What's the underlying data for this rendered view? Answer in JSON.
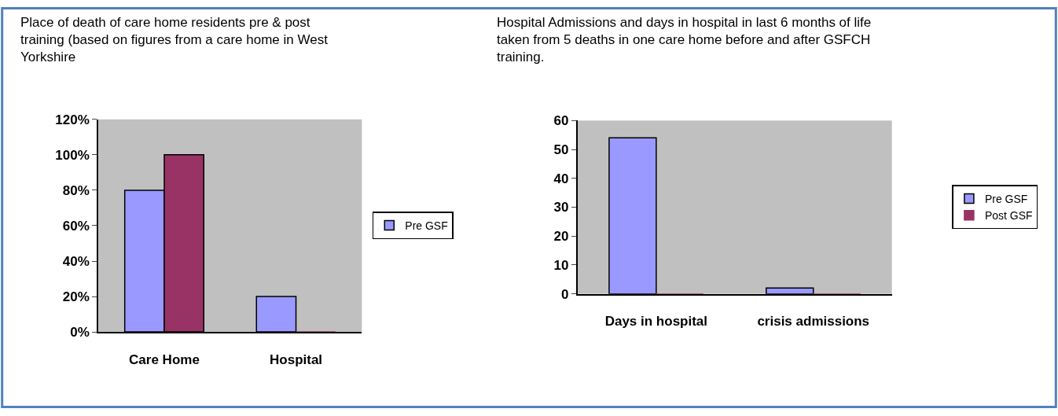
{
  "chart_data": [
    {
      "type": "bar",
      "title": "Place of death of care home residents pre & post training (based on figures from a care home in West Yorkshire",
      "categories": [
        "Care Home",
        "Hospital"
      ],
      "series": [
        {
          "name": "Pre GSF",
          "color": "#9999ff",
          "values": [
            80,
            20
          ]
        },
        {
          "color": "#993366",
          "values": [
            100,
            0
          ]
        }
      ],
      "ylim": [
        0,
        120
      ],
      "yticks": [
        {
          "value": 0,
          "label": "0%"
        },
        {
          "value": 20,
          "label": "20%"
        },
        {
          "value": 40,
          "label": "40%"
        },
        {
          "value": 60,
          "label": "60%"
        },
        {
          "value": 80,
          "label": "80%"
        },
        {
          "value": 100,
          "label": "100%"
        },
        {
          "value": 120,
          "label": "120%"
        }
      ],
      "legend": "right"
    },
    {
      "type": "bar",
      "title": "Hospital Admissions and days in hospital in last 6 months of life taken from 5 deaths in one care home before and after GSFCH training.",
      "categories": [
        "Days in hospital",
        "crisis admissions"
      ],
      "series": [
        {
          "name": "Pre GSF",
          "color": "#9999ff",
          "values": [
            54,
            2
          ]
        },
        {
          "name": "Post GSF",
          "color": "#993366",
          "values": [
            0,
            0
          ]
        }
      ],
      "ylim": [
        0,
        60
      ],
      "yticks": [
        0,
        10,
        20,
        30,
        40,
        50,
        60
      ],
      "legend": "right"
    }
  ]
}
